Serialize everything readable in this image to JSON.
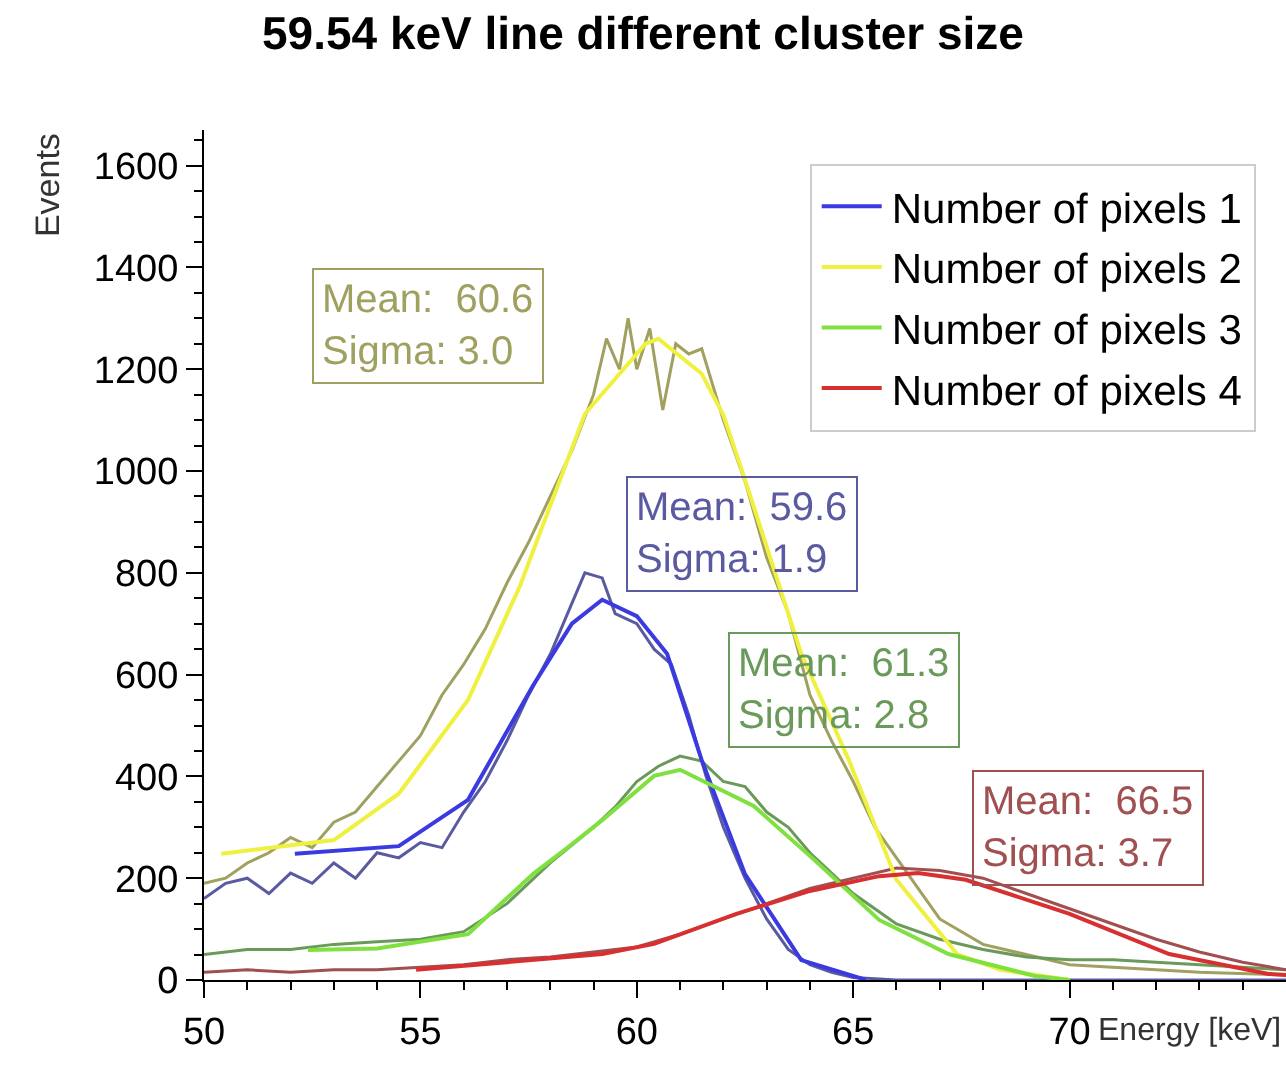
{
  "chart_data": {
    "type": "line",
    "title": "59.54 keV line different cluster size",
    "xlabel": "Energy [keV]",
    "ylabel": "Events",
    "xlim": [
      50,
      75
    ],
    "ylim": [
      0,
      1670
    ],
    "xticks": [
      50,
      {
        "value": 51,
        "label": null
      },
      {
        "value": 52,
        "label": null
      },
      {
        "value": 53,
        "label": null
      },
      {
        "value": 54,
        "label": null
      },
      55,
      {
        "value": 56,
        "label": null
      },
      {
        "value": 57,
        "label": null
      },
      {
        "value": 58,
        "label": null
      },
      {
        "value": 59,
        "label": null
      },
      60,
      {
        "value": 61,
        "label": null
      },
      {
        "value": 62,
        "label": null
      },
      {
        "value": 63,
        "label": null
      },
      {
        "value": 64,
        "label": null
      },
      65,
      {
        "value": 66,
        "label": null
      },
      {
        "value": 67,
        "label": null
      },
      {
        "value": 68,
        "label": null
      },
      {
        "value": 69,
        "label": null
      },
      70,
      {
        "value": 71,
        "label": null
      },
      {
        "value": 72,
        "label": null
      },
      {
        "value": 73,
        "label": null
      },
      {
        "value": 74,
        "label": null
      }
    ],
    "yticks": [
      0,
      {
        "value": 50,
        "label": null
      },
      {
        "value": 100,
        "label": null
      },
      {
        "value": 150,
        "label": null
      },
      200,
      {
        "value": 250,
        "label": null
      },
      {
        "value": 300,
        "label": null
      },
      {
        "value": 350,
        "label": null
      },
      400,
      {
        "value": 450,
        "label": null
      },
      {
        "value": 500,
        "label": null
      },
      {
        "value": 550,
        "label": null
      },
      600,
      {
        "value": 650,
        "label": null
      },
      {
        "value": 700,
        "label": null
      },
      {
        "value": 750,
        "label": null
      },
      800,
      {
        "value": 850,
        "label": null
      },
      {
        "value": 900,
        "label": null
      },
      {
        "value": 950,
        "label": null
      },
      1000,
      {
        "value": 1050,
        "label": null
      },
      {
        "value": 1100,
        "label": null
      },
      {
        "value": 1150,
        "label": null
      },
      1200,
      {
        "value": 1250,
        "label": null
      },
      {
        "value": 1300,
        "label": null
      },
      {
        "value": 1350,
        "label": null
      },
      1400,
      {
        "value": 1450,
        "label": null
      },
      {
        "value": 1500,
        "label": null
      },
      {
        "value": 1550,
        "label": null
      },
      1600,
      {
        "value": 1650,
        "label": null
      }
    ],
    "grid": false,
    "legend": "top right",
    "marker": "none",
    "line_style": "solid",
    "series": [
      {
        "name": "Number of pixels 1",
        "color": "#3a3ae0",
        "x": [
          52.1,
          54.5,
          56.1,
          57.6,
          58.5,
          59.2,
          60,
          60.7,
          61.5,
          62.5,
          63.8,
          65.3
        ],
        "values": [
          248,
          263,
          354,
          578,
          700,
          747,
          715,
          641,
          432,
          208,
          39,
          0
        ]
      },
      {
        "name": "Number of pixels 2",
        "color": "#f0f040",
        "x": [
          50.4,
          53,
          54.5,
          56.1,
          57.3,
          58.8,
          60.2,
          60.5,
          60.7,
          61.5,
          62,
          62.5,
          63.8,
          64.9,
          66,
          67.4,
          68.4,
          70
        ],
        "values": [
          248,
          275,
          366,
          550,
          774,
          1112,
          1250,
          1260,
          1246,
          1191,
          1110,
          983,
          641,
          432,
          197,
          51,
          20,
          0
        ]
      },
      {
        "name": "Number of pixels 3",
        "color": "#80e040",
        "x": [
          52.4,
          54,
          56.1,
          57.6,
          58.4,
          59.2,
          60.4,
          61,
          62.7,
          64.1,
          65.6,
          67.2,
          69.2,
          70
        ],
        "values": [
          59,
          62,
          90,
          208,
          260,
          314,
          401,
          413,
          342,
          236,
          118,
          51,
          8,
          0
        ]
      },
      {
        "name": "Number of pixels 4",
        "color": "#d83030",
        "x": [
          54.9,
          57,
          59.2,
          60.4,
          62.3,
          64,
          65.6,
          66.5,
          67.6,
          70,
          72.3,
          74.6,
          75
        ],
        "values": [
          20,
          35,
          51,
          71,
          130,
          175,
          204,
          210,
          197,
          130,
          51,
          12,
          10
        ]
      },
      {
        "color": "#5a5aa0",
        "x": [
          50,
          50.5,
          51,
          51.5,
          52,
          52.5,
          53,
          53.5,
          54,
          54.5,
          55,
          55.5,
          56,
          56.5,
          57,
          57.5,
          58,
          58.5,
          58.8,
          59.2,
          59.5,
          60,
          60.4,
          60.8,
          61.2,
          61.6,
          62,
          62.5,
          63,
          63.5,
          64,
          64.5,
          65,
          66,
          75
        ],
        "values": [
          160,
          190,
          200,
          170,
          210,
          190,
          230,
          200,
          250,
          240,
          270,
          260,
          330,
          390,
          470,
          560,
          640,
          740,
          800,
          790,
          720,
          700,
          650,
          620,
          520,
          400,
          300,
          200,
          120,
          60,
          30,
          15,
          5,
          0,
          0
        ]
      },
      {
        "color": "#a0a060",
        "x": [
          50,
          50.5,
          51,
          51.5,
          52,
          52.5,
          53,
          53.5,
          54,
          54.5,
          55,
          55.5,
          56,
          56.5,
          57,
          57.5,
          58,
          58.5,
          59,
          59.3,
          59.6,
          59.8,
          60,
          60.3,
          60.6,
          60.9,
          61.2,
          61.5,
          62,
          62.5,
          63,
          63.5,
          64,
          64.5,
          65,
          65.5,
          66,
          67,
          68,
          69,
          70,
          71,
          72,
          73,
          75
        ],
        "values": [
          190,
          200,
          230,
          250,
          280,
          260,
          310,
          330,
          380,
          430,
          480,
          560,
          620,
          690,
          780,
          860,
          950,
          1040,
          1150,
          1260,
          1200,
          1300,
          1200,
          1280,
          1120,
          1250,
          1230,
          1240,
          1100,
          980,
          830,
          720,
          560,
          470,
          390,
          300,
          240,
          120,
          70,
          50,
          30,
          25,
          20,
          15,
          10
        ]
      },
      {
        "color": "#6a9a5a",
        "x": [
          50,
          51,
          52,
          53,
          54,
          55,
          56,
          57,
          58,
          59,
          59.5,
          60,
          60.5,
          61,
          61.5,
          62,
          62.5,
          63,
          63.5,
          64,
          64.5,
          65,
          65.5,
          66,
          67,
          68,
          69,
          70,
          71,
          72,
          73,
          74,
          75
        ],
        "values": [
          50,
          60,
          60,
          70,
          75,
          80,
          95,
          150,
          230,
          300,
          340,
          390,
          420,
          440,
          430,
          390,
          380,
          330,
          300,
          250,
          210,
          170,
          140,
          110,
          80,
          60,
          45,
          40,
          40,
          35,
          30,
          25,
          20
        ]
      },
      {
        "color": "#a05050",
        "x": [
          50,
          51,
          52,
          53,
          54,
          55,
          56,
          57,
          58,
          59,
          60,
          61,
          62,
          63,
          64,
          65,
          66,
          67,
          68,
          69,
          70,
          71,
          72,
          73,
          74,
          75
        ],
        "values": [
          15,
          20,
          15,
          20,
          20,
          25,
          30,
          40,
          45,
          55,
          65,
          90,
          120,
          150,
          180,
          200,
          220,
          215,
          200,
          170,
          140,
          110,
          80,
          55,
          35,
          20
        ]
      }
    ],
    "annotations": [
      "Mean:  59.6\nSigma: 1.9",
      "Mean:  60.6\nSigma: 3.0",
      "Mean:  61.3\nSigma: 2.8",
      "Mean:  66.5\nSigma: 3.7"
    ]
  }
}
